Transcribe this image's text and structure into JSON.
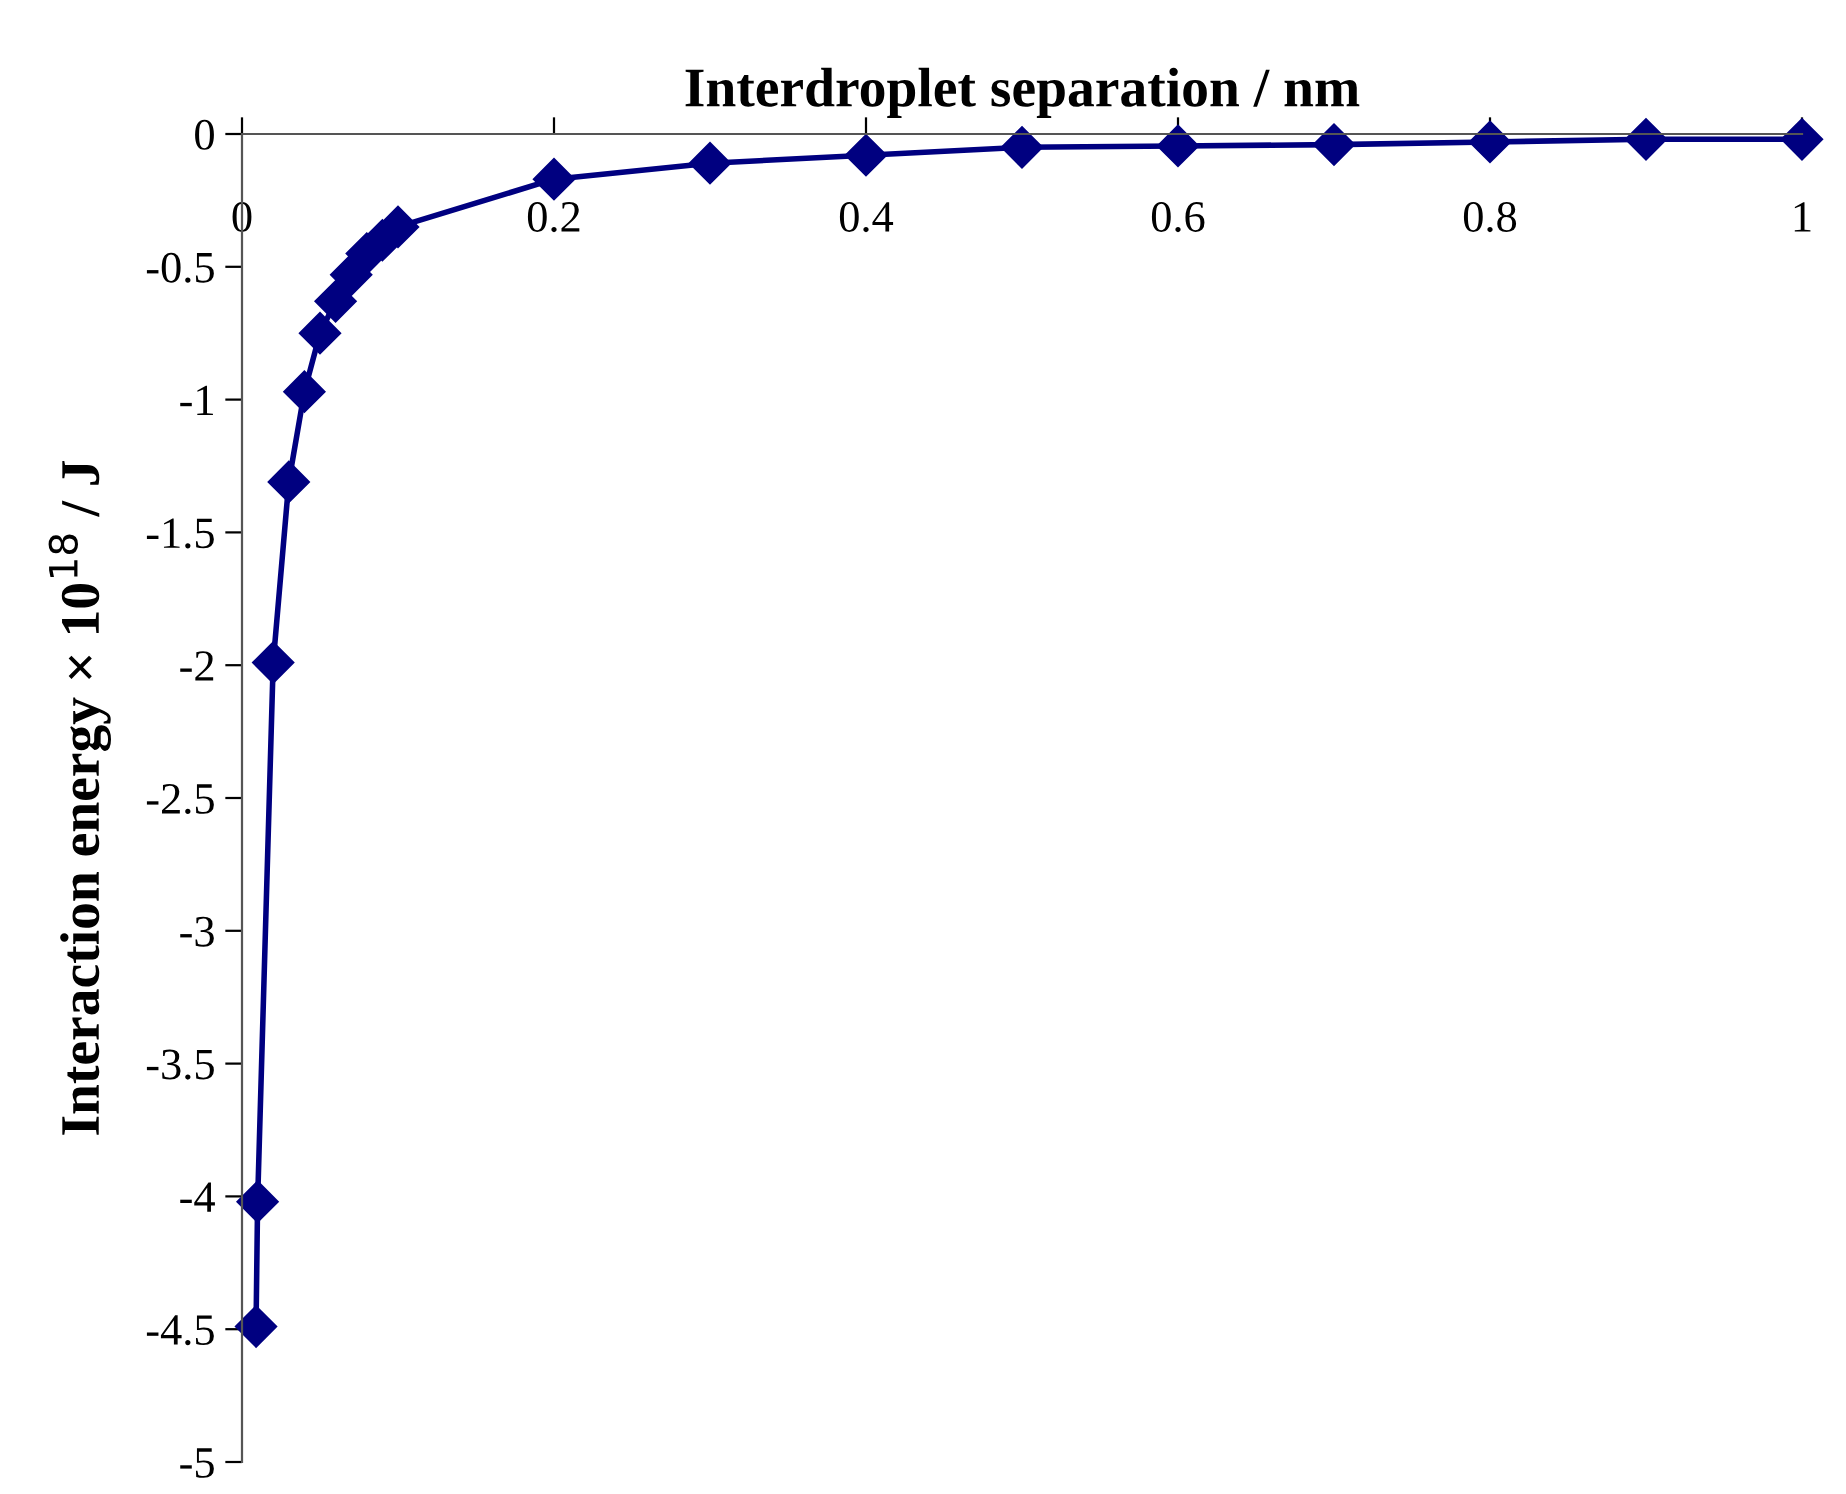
{
  "chart_data": {
    "type": "line",
    "xlabel": "Interdroplet separation / nm",
    "ylabel": "Interaction energy × 10$^{18}$ / J",
    "x": [
      0.009,
      0.01,
      0.02,
      0.03,
      0.04,
      0.05,
      0.06,
      0.07,
      0.08,
      0.09,
      0.1,
      0.2,
      0.3,
      0.4,
      0.5,
      0.6,
      0.7,
      0.8,
      0.9,
      1.0
    ],
    "series": [
      {
        "color": "#000080",
        "values": [
          -4.49,
          -4.02,
          -1.99,
          -1.31,
          -0.97,
          -0.75,
          -0.63,
          -0.53,
          -0.45,
          -0.4,
          -0.35,
          -0.17,
          -0.11,
          -0.08,
          -0.05,
          -0.045,
          -0.04,
          -0.03,
          -0.02,
          -0.02
        ]
      }
    ],
    "xlim": [
      0,
      1
    ],
    "xticks": [
      0,
      0.2,
      0.4,
      0.6,
      0.8,
      1
    ],
    "ylim": [
      -5,
      0
    ],
    "yticks": [
      -5,
      -4.5,
      -4,
      -3.5,
      -3,
      -2.5,
      -2,
      -1.5,
      -1,
      -0.5,
      0
    ],
    "marker": "diamond",
    "line_style": "solid",
    "grid": false,
    "legend": false
  }
}
